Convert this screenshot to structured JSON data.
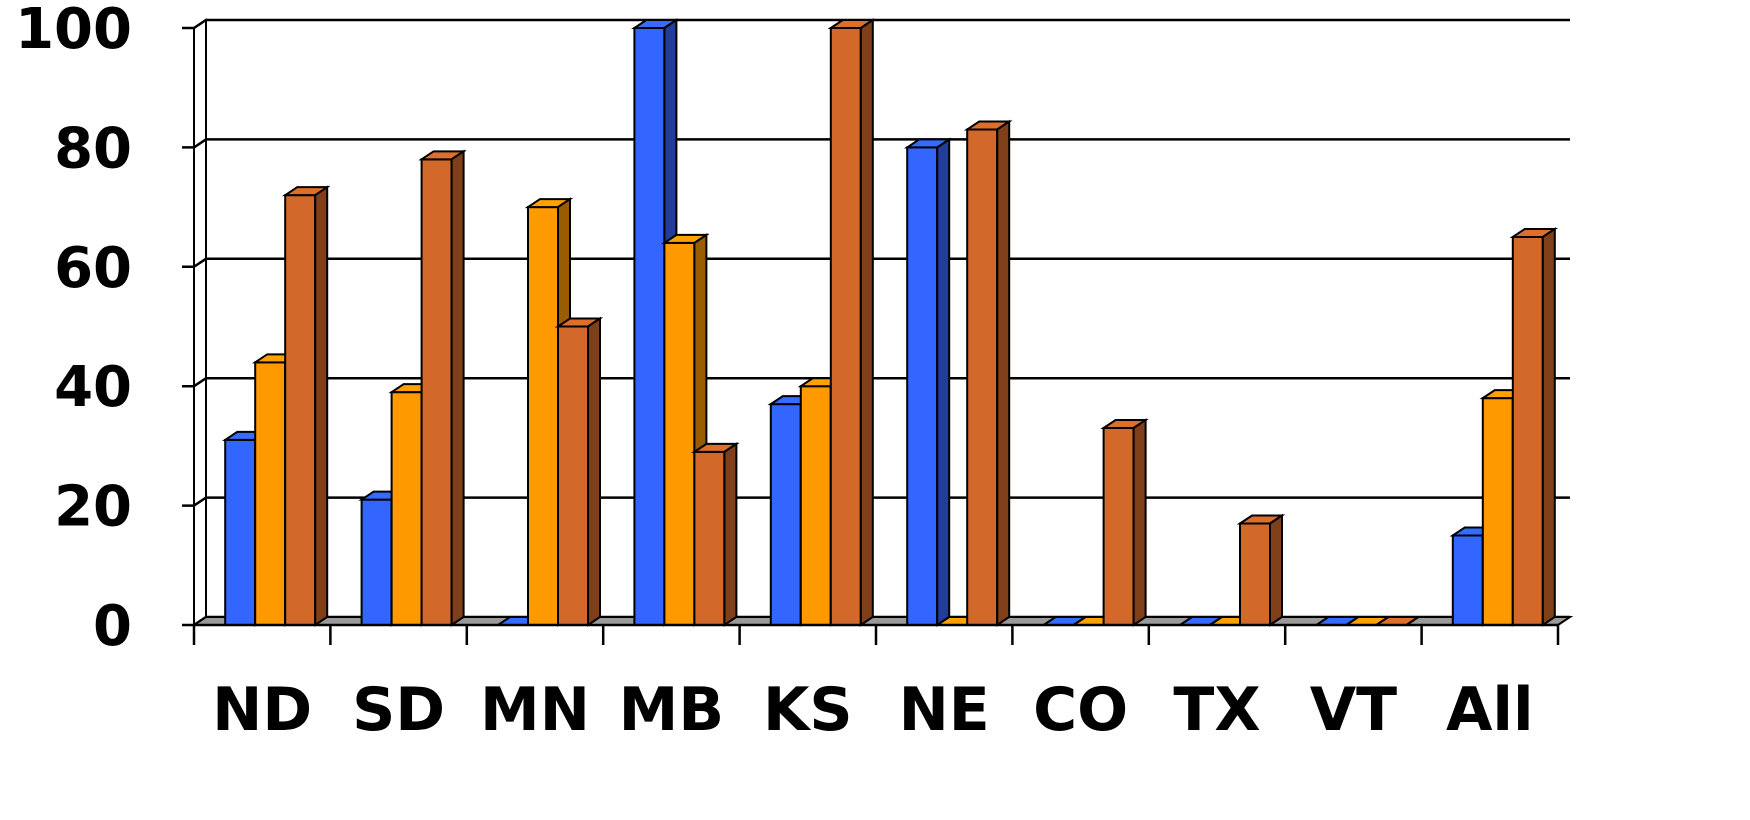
{
  "chart_data": {
    "type": "bar",
    "title": "",
    "xlabel": "",
    "ylabel": "",
    "ylim": [
      0,
      100
    ],
    "yticks": [
      "0",
      "20",
      "40",
      "60",
      "80",
      "100"
    ],
    "grid": true,
    "legend": "none",
    "categories": [
      "ND",
      "SD",
      "MN",
      "MB",
      "KS",
      "NE",
      "CO",
      "TX",
      "VT",
      "All"
    ],
    "series": [
      {
        "color": "#3366ff",
        "values": [
          31,
          21,
          0,
          100,
          37,
          80,
          0,
          0,
          0,
          15
        ]
      },
      {
        "color": "#ff9900",
        "values": [
          44,
          39,
          70,
          64,
          40,
          0,
          0,
          0,
          0,
          38
        ]
      },
      {
        "color": "#d2692a",
        "values": [
          72,
          78,
          50,
          29,
          100,
          83,
          33,
          17,
          0,
          65
        ]
      }
    ]
  }
}
